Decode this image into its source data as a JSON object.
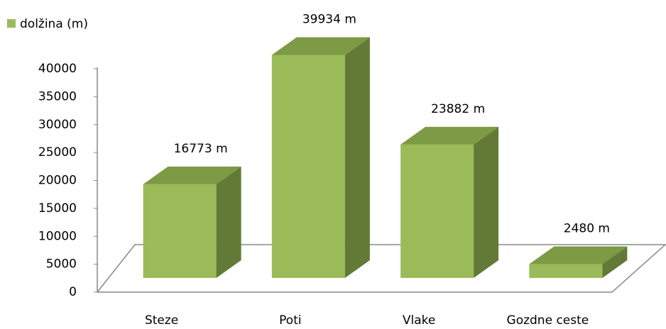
{
  "chart_data": {
    "type": "bar3d",
    "categories": [
      "Steze",
      "Poti",
      "Vlake",
      "Gozdne ceste"
    ],
    "series": [
      {
        "name": "dolžina (m)",
        "color": "#9bbb59",
        "values": [
          16773,
          39934,
          23882,
          2480
        ],
        "value_labels": [
          "16773 m",
          "39934 m",
          "23882 m",
          "2480 m"
        ]
      }
    ],
    "ylim": [
      0,
      40000
    ],
    "yticks": [
      0,
      5000,
      10000,
      15000,
      20000,
      25000,
      30000,
      35000,
      40000
    ],
    "legend": "top-left"
  }
}
